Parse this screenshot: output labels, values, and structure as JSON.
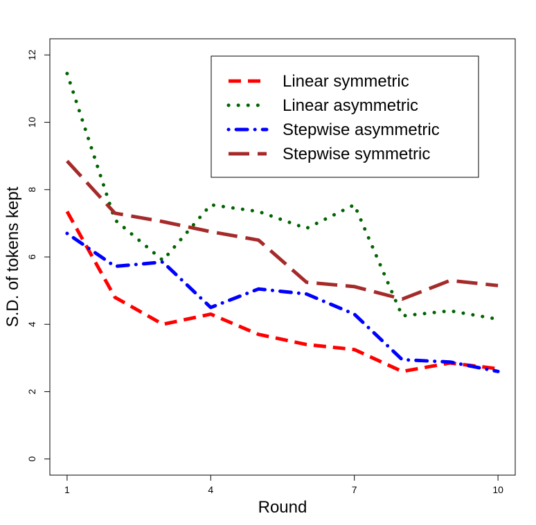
{
  "chart_data": {
    "type": "line",
    "title": "",
    "xlabel": "Round",
    "ylabel": "S.D. of tokens kept",
    "x": [
      1,
      2,
      3,
      4,
      5,
      6,
      7,
      8,
      9,
      10
    ],
    "xticks": [
      1,
      4,
      7,
      10
    ],
    "yticks": [
      0,
      2,
      4,
      6,
      8,
      10,
      12
    ],
    "xlim": [
      0.64,
      10.36
    ],
    "ylim": [
      -0.48,
      12.48
    ],
    "grid": false,
    "legend_position": "top-right",
    "series": [
      {
        "name": "Linear symmetric",
        "color": "#ff0000",
        "style": "dashed",
        "values": [
          7.35,
          4.8,
          4.0,
          4.3,
          3.7,
          3.4,
          3.25,
          2.6,
          2.85,
          2.68
        ]
      },
      {
        "name": "Linear asymmetric",
        "color": "#006400",
        "style": "dotted",
        "values": [
          11.45,
          7.1,
          5.9,
          7.55,
          7.35,
          6.85,
          7.55,
          4.25,
          4.4,
          4.15
        ]
      },
      {
        "name": "Stepwise asymmetric",
        "color": "#0000ff",
        "style": "dotdash",
        "values": [
          6.7,
          5.72,
          5.85,
          4.5,
          5.05,
          4.9,
          4.3,
          2.95,
          2.88,
          2.6
        ]
      },
      {
        "name": "Stepwise symmetric",
        "color": "#a52a2a",
        "style": "longdash",
        "values": [
          8.85,
          7.3,
          7.05,
          6.75,
          6.5,
          5.25,
          5.12,
          4.75,
          5.3,
          5.15
        ]
      }
    ]
  }
}
